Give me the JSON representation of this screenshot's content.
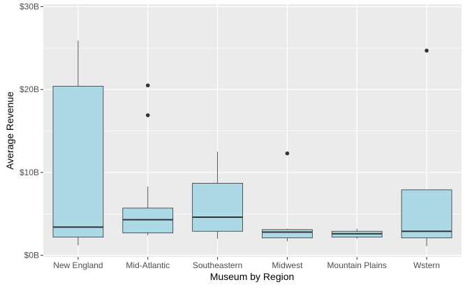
{
  "chart_data": {
    "type": "box",
    "title": "",
    "xlabel": "Museum by Region",
    "ylabel": "Average Revenue",
    "ylim": [
      -0.2,
      30.3
    ],
    "y_ticks": [
      {
        "value": 0,
        "label": "$0B"
      },
      {
        "value": 10,
        "label": "$10B"
      },
      {
        "value": 20,
        "label": "$20B"
      },
      {
        "value": 30,
        "label": "$30B"
      }
    ],
    "grid": true,
    "legend": "none",
    "categories": [
      "New England",
      "Mid-Atlantic",
      "Southeastern",
      "Midwest",
      "Mountain Plains",
      "Wstern"
    ],
    "boxes": [
      {
        "category": "New England",
        "whisker_low": 1.2,
        "q1": 2.2,
        "median": 3.4,
        "q3": 20.4,
        "whisker_high": 25.9,
        "outliers": []
      },
      {
        "category": "Mid-Atlantic",
        "whisker_low": 2.4,
        "q1": 2.7,
        "median": 4.3,
        "q3": 5.7,
        "whisker_high": 8.3,
        "outliers": [
          20.5,
          16.9
        ]
      },
      {
        "category": "Southeastern",
        "whisker_low": 2.0,
        "q1": 2.9,
        "median": 4.6,
        "q3": 8.7,
        "whisker_high": 12.5,
        "outliers": []
      },
      {
        "category": "Midwest",
        "whisker_low": 1.7,
        "q1": 2.1,
        "median": 2.8,
        "q3": 3.1,
        "whisker_high": 3.2,
        "outliers": [
          12.3
        ]
      },
      {
        "category": "Mountain Plains",
        "whisker_low": 2.0,
        "q1": 2.2,
        "median": 2.6,
        "q3": 2.9,
        "whisker_high": 3.2,
        "outliers": []
      },
      {
        "category": "Wstern",
        "whisker_low": 1.1,
        "q1": 2.1,
        "median": 2.9,
        "q3": 7.9,
        "whisker_high": 7.9,
        "outliers": [
          24.7
        ]
      }
    ],
    "colors": {
      "box_fill": "#add8e6",
      "box_stroke": "#333333",
      "panel_background": "#ebebeb",
      "grid": "#ffffff"
    }
  }
}
